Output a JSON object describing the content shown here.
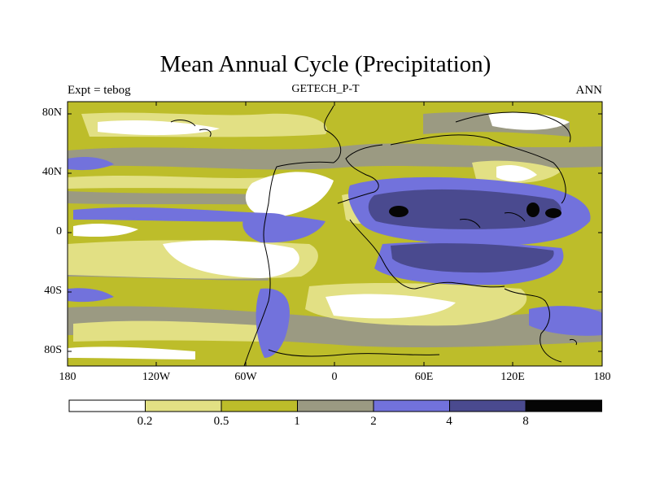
{
  "title": "Mean Annual Cycle (Precipitation)",
  "subtitle_left": "Expt = tebog",
  "subtitle_center": "GETECH_P-T",
  "subtitle_right": "ANN",
  "lat_labels": [
    "80N",
    "40N",
    "0",
    "40S",
    "80S"
  ],
  "lon_labels": [
    "180",
    "120W",
    "60W",
    "0",
    "60E",
    "120E",
    "180"
  ],
  "colorbar": {
    "labels": [
      "0.2",
      "0.5",
      "1",
      "2",
      "4",
      "8"
    ],
    "colors": [
      "#ffffff",
      "#e2e084",
      "#bdbd2a",
      "#9b9a82",
      "#7272dc",
      "#4a4a8f",
      "#050505"
    ]
  }
}
